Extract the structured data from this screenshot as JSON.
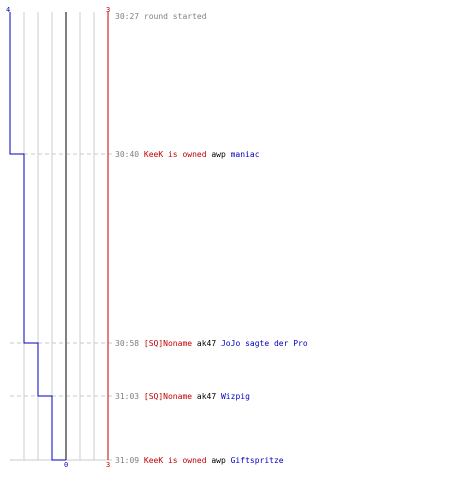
{
  "chart_data": {
    "type": "line",
    "left_scale": {
      "top": "4",
      "bottom": "0"
    },
    "right_scale": {
      "top": "3",
      "bottom": "3"
    },
    "colors": {
      "grid": "#cccccc",
      "axis_center": "#808080",
      "team_blue": "#0000c0",
      "team_red": "#c00000",
      "timestamp": "#808080",
      "text": "#000000",
      "dashed": "#c8c8c8"
    },
    "blue_alive": [
      4,
      3,
      2,
      1,
      0
    ],
    "events": [
      {
        "time": "30:27",
        "parts": [
          {
            "text": "round started",
            "role": "status"
          }
        ]
      },
      {
        "time": "30:40",
        "parts": [
          {
            "text": "KeeK is owned",
            "role": "red"
          },
          {
            "text": "awp",
            "role": "weapon"
          },
          {
            "text": "maniac",
            "role": "blue"
          }
        ]
      },
      {
        "time": "30:58",
        "parts": [
          {
            "text": "[SQ]Noname",
            "role": "red"
          },
          {
            "text": "ak47",
            "role": "weapon"
          },
          {
            "text": "JoJo sagte der Pro",
            "role": "blue"
          }
        ]
      },
      {
        "time": "31:03",
        "parts": [
          {
            "text": "[SQ]Noname",
            "role": "red"
          },
          {
            "text": "ak47",
            "role": "weapon"
          },
          {
            "text": "Wizpig",
            "role": "blue"
          }
        ]
      },
      {
        "time": "31:09",
        "parts": [
          {
            "text": "KeeK is owned",
            "role": "red"
          },
          {
            "text": "awp",
            "role": "weapon"
          },
          {
            "text": "Giftspritze",
            "role": "blue"
          }
        ]
      }
    ]
  }
}
